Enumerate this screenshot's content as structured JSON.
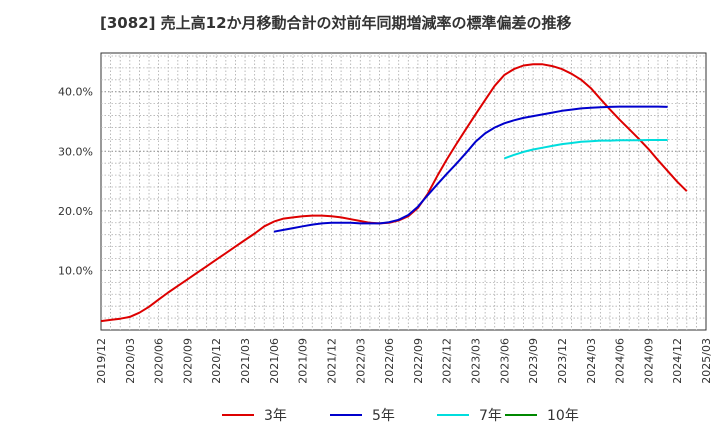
{
  "title": "[3082]  売上高12か月移動合計の対前年同期増減率の標準偏差の推移",
  "chart_data": {
    "type": "line",
    "title": "[3082]  売上高12か月移動合計の対前年同期増減率の標準偏差の推移",
    "xlabel": "",
    "ylabel": "",
    "x_ticks": [
      "2019/12",
      "2020/03",
      "2020/06",
      "2020/09",
      "2020/12",
      "2021/03",
      "2021/06",
      "2021/09",
      "2021/12",
      "2022/03",
      "2022/06",
      "2022/09",
      "2022/12",
      "2023/03",
      "2023/06",
      "2023/09",
      "2023/12",
      "2024/03",
      "2024/06",
      "2024/09",
      "2024/12",
      "2025/03"
    ],
    "y_ticks": [
      10,
      20,
      30,
      40
    ],
    "y_tick_labels": [
      "10.0%",
      "20.0%",
      "30.0%",
      "40.0%"
    ],
    "ylim": [
      0,
      46.5
    ],
    "grid": true,
    "legend_position": "bottom",
    "series": [
      {
        "name": "3年",
        "color": "#dd0000",
        "start": "2019/12",
        "values": [
          1.5,
          1.7,
          1.9,
          2.2,
          2.9,
          3.9,
          5.1,
          6.3,
          7.4,
          8.5,
          9.6,
          10.7,
          11.8,
          12.9,
          14.0,
          15.1,
          16.2,
          17.4,
          18.2,
          18.7,
          18.9,
          19.1,
          19.2,
          19.2,
          19.1,
          18.9,
          18.6,
          18.3,
          18.0,
          17.9,
          18.0,
          18.4,
          19.1,
          20.5,
          22.8,
          25.8,
          28.6,
          31.2,
          33.7,
          36.2,
          38.6,
          41.0,
          42.8,
          43.8,
          44.4,
          44.6,
          44.6,
          44.3,
          43.8,
          43.0,
          42.0,
          40.6,
          38.8,
          37.0,
          35.3,
          33.7,
          32.1,
          30.4,
          28.5,
          26.7,
          24.9,
          23.3
        ]
      },
      {
        "name": "5年",
        "color": "#0000cc",
        "start": "2021/06",
        "values": [
          16.5,
          16.8,
          17.1,
          17.4,
          17.7,
          17.9,
          18.0,
          18.0,
          18.0,
          17.9,
          17.9,
          17.9,
          18.1,
          18.5,
          19.3,
          20.7,
          22.6,
          24.4,
          26.2,
          27.9,
          29.7,
          31.6,
          33.0,
          34.0,
          34.7,
          35.2,
          35.6,
          35.9,
          36.2,
          36.5,
          36.8,
          37.0,
          37.2,
          37.3,
          37.4,
          37.45,
          37.5,
          37.5,
          37.5,
          37.5,
          37.5,
          37.45
        ]
      },
      {
        "name": "7年",
        "color": "#00dddd",
        "start": "2023/06",
        "values": [
          28.8,
          29.4,
          29.9,
          30.3,
          30.6,
          30.9,
          31.2,
          31.4,
          31.6,
          31.7,
          31.8,
          31.8,
          31.85,
          31.85,
          31.85,
          31.9,
          31.9,
          31.9
        ]
      },
      {
        "name": "10年",
        "color": "#008800",
        "start": "2024/12",
        "values": []
      }
    ]
  }
}
